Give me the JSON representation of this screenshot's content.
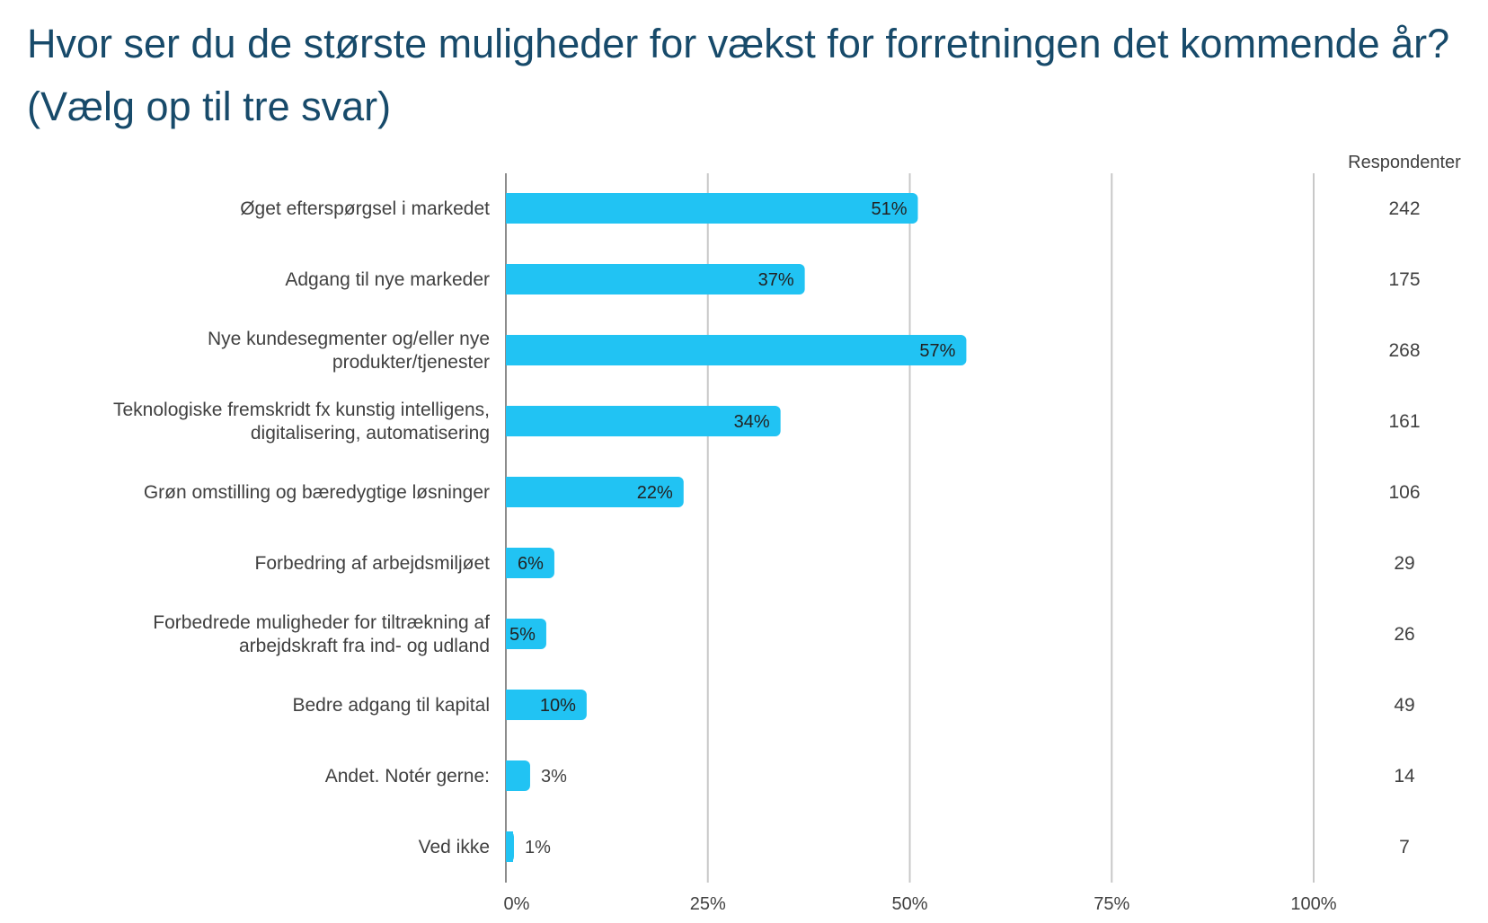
{
  "chart_data": {
    "type": "bar",
    "orientation": "horizontal",
    "title": "Hvor ser du de største muligheder for vækst for forretningen det kommende år? (Vælg op til tre svar)",
    "xlim": [
      0,
      100
    ],
    "x_ticks": [
      "0%",
      "25%",
      "50%",
      "75%",
      "100%"
    ],
    "grid": true,
    "respondents_header": "Respondenter",
    "bar_color": "#21c3f3",
    "categories": [
      [
        "Øget efterspørgsel i markedet"
      ],
      [
        "Adgang til nye markeder"
      ],
      [
        "Nye kundesegmenter og/eller nye",
        "produkter/tjenester"
      ],
      [
        "Teknologiske fremskridt fx kunstig intelligens,",
        "digitalisering, automatisering"
      ],
      [
        "Grøn omstilling og bæredygtige løsninger"
      ],
      [
        "Forbedring af arbejdsmiljøet"
      ],
      [
        "Forbedrede muligheder for tiltrækning af",
        "arbejdskraft fra ind- og udland"
      ],
      [
        "Bedre adgang til kapital"
      ],
      [
        "Andet. Notér gerne:"
      ],
      [
        "Ved ikke"
      ]
    ],
    "values": [
      51,
      37,
      57,
      34,
      22,
      6,
      5,
      10,
      3,
      1
    ],
    "value_labels": [
      "51%",
      "37%",
      "57%",
      "34%",
      "22%",
      "6%",
      "5%",
      "10%",
      "3%",
      "1%"
    ],
    "respondents": [
      "242",
      "175",
      "268",
      "161",
      "106",
      "29",
      "26",
      "49",
      "14",
      "7"
    ]
  }
}
